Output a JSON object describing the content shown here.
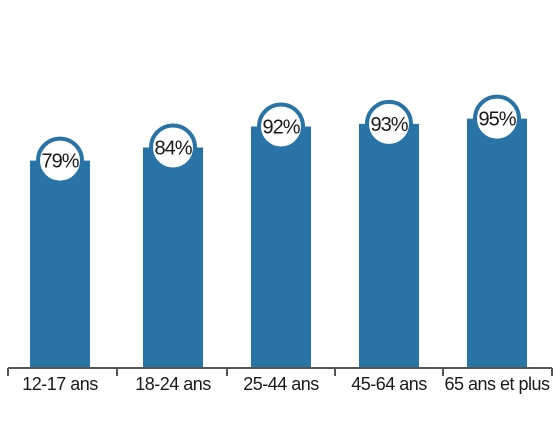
{
  "chart_data": {
    "type": "bar",
    "categories": [
      "12-17 ans",
      "18-24 ans",
      "25-44 ans",
      "45-64 ans",
      "65 ans et plus"
    ],
    "values": [
      79,
      84,
      92,
      93,
      95
    ],
    "value_labels": [
      "79%",
      "84%",
      "92%",
      "93%",
      "95%"
    ],
    "unit": "%",
    "ylim": [
      0,
      100
    ],
    "title": "",
    "xlabel": "",
    "ylabel": "",
    "grid": false,
    "legend": "none",
    "bar_color": "#2874a6",
    "badge_border_color": "#2874a6"
  }
}
